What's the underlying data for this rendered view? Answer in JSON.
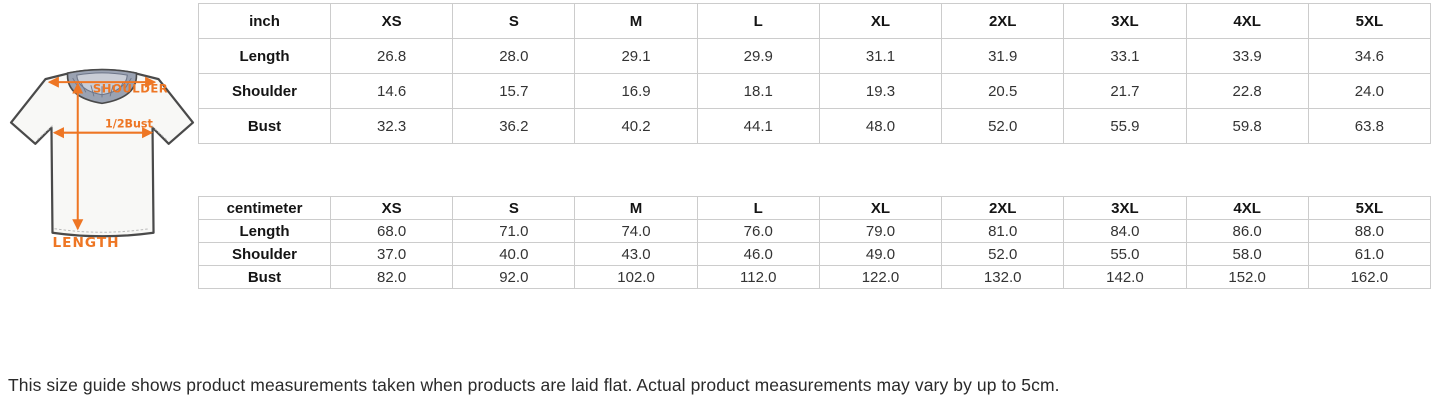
{
  "page": {
    "background": "#ffffff",
    "footer_note": "This size guide shows product measurements taken when products are laid flat. Actual product measurements may vary by up to 5cm."
  },
  "figure": {
    "description": "t-shirt flat-lay measurement diagram",
    "accent_color": "#ee7624",
    "labels": {
      "shoulder": "SHOULDER",
      "half_bust": "1/2Bust",
      "length": "LENGTH"
    }
  },
  "tables": [
    {
      "id": "inch",
      "unit_label": "inch",
      "sizes": [
        "XS",
        "S",
        "M",
        "L",
        "XL",
        "2XL",
        "3XL",
        "4XL",
        "5XL"
      ],
      "rows": [
        {
          "label": "Length",
          "values": [
            "26.8",
            "28.0",
            "29.1",
            "29.9",
            "31.1",
            "31.9",
            "33.1",
            "33.9",
            "34.6"
          ]
        },
        {
          "label": "Shoulder",
          "values": [
            "14.6",
            "15.7",
            "16.9",
            "18.1",
            "19.3",
            "20.5",
            "21.7",
            "22.8",
            "24.0"
          ]
        },
        {
          "label": "Bust",
          "values": [
            "32.3",
            "36.2",
            "40.2",
            "44.1",
            "48.0",
            "52.0",
            "55.9",
            "59.8",
            "63.8"
          ]
        }
      ]
    },
    {
      "id": "centimeter",
      "unit_label": "centimeter",
      "sizes": [
        "XS",
        "S",
        "M",
        "L",
        "XL",
        "2XL",
        "3XL",
        "4XL",
        "5XL"
      ],
      "rows": [
        {
          "label": "Length",
          "values": [
            "68.0",
            "71.0",
            "74.0",
            "76.0",
            "79.0",
            "81.0",
            "84.0",
            "86.0",
            "88.0"
          ]
        },
        {
          "label": "Shoulder",
          "values": [
            "37.0",
            "40.0",
            "43.0",
            "46.0",
            "49.0",
            "52.0",
            "55.0",
            "58.0",
            "61.0"
          ]
        },
        {
          "label": "Bust",
          "values": [
            "82.0",
            "92.0",
            "102.0",
            "112.0",
            "122.0",
            "132.0",
            "142.0",
            "152.0",
            "162.0"
          ]
        }
      ]
    }
  ]
}
